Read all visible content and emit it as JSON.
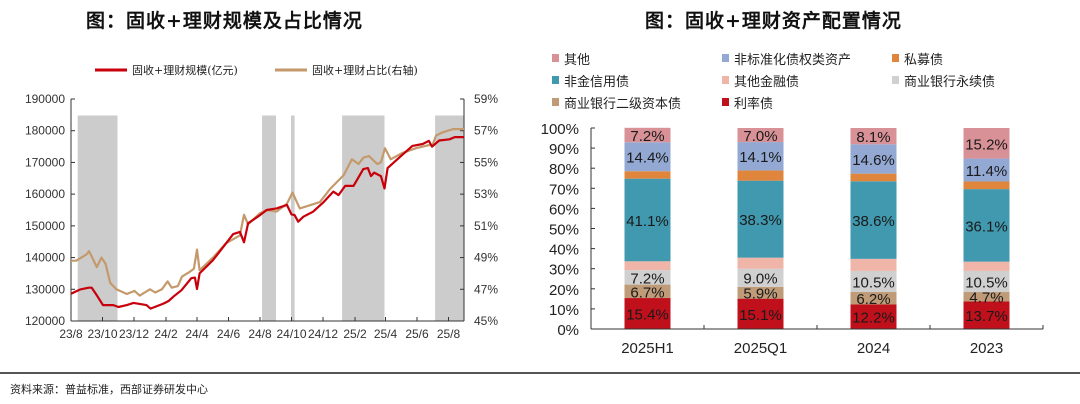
{
  "left_title": "图：固收+理财规模及占比情况",
  "right_title": "图：固收+理财资产配置情况",
  "source": "资料来源：普益标准，西部证券研发中心",
  "chart_data": [
    {
      "type": "line",
      "xlabels": [
        "23/8",
        "23/10",
        "23/12",
        "24/2",
        "24/4",
        "24/6",
        "24/8",
        "24/10",
        "24/12",
        "25/2",
        "25/4",
        "25/6",
        "25/8"
      ],
      "xtick_dates": [
        "2023-08-01",
        "2023-10-01",
        "2023-12-01",
        "2024-02-01",
        "2024-04-01",
        "2024-06-01",
        "2024-08-01",
        "2024-10-01",
        "2024-12-01",
        "2025-02-01",
        "2025-04-01",
        "2025-06-01",
        "2025-08-01"
      ],
      "xlim": [
        "2023-08-01",
        "2025-08-31"
      ],
      "y_left": {
        "lim": [
          120000,
          190000
        ],
        "ticks": [
          "120000",
          "130000",
          "140000",
          "150000",
          "160000",
          "170000",
          "180000",
          "190000"
        ]
      },
      "y_right": {
        "lim": [
          45,
          59
        ],
        "ticks": [
          "45%",
          "47%",
          "49%",
          "51%",
          "53%",
          "55%",
          "57%",
          "59%"
        ]
      },
      "grid": false,
      "legend_position": "top",
      "shaded_periods": [
        [
          "2023-08-14",
          "2023-10-30"
        ],
        [
          "2024-08-05",
          "2024-09-01"
        ],
        [
          "2024-09-30",
          "2024-10-07"
        ],
        [
          "2025-01-07",
          "2025-03-30"
        ],
        [
          "2025-07-06",
          "2025-08-31"
        ]
      ],
      "shade_color": "#cccccc",
      "series": [
        {
          "name": "固收+理财规模(亿元)",
          "axis": "left",
          "color": "#c8000b",
          "x": [
            "2023-08-01",
            "2023-08-18",
            "2023-09-04",
            "2023-09-10",
            "2023-09-20",
            "2023-10-02",
            "2023-10-22",
            "2023-11-01",
            "2023-11-17",
            "2023-11-30",
            "2023-12-25",
            "2024-01-02",
            "2024-01-27",
            "2024-02-06",
            "2024-02-16",
            "2024-03-02",
            "2024-03-21",
            "2024-03-28",
            "2024-04-01",
            "2024-04-06",
            "2024-05-02",
            "2024-05-27",
            "2024-06-10",
            "2024-06-23",
            "2024-07-01",
            "2024-07-09",
            "2024-08-01",
            "2024-08-14",
            "2024-09-02",
            "2024-09-22",
            "2024-10-01",
            "2024-10-07",
            "2024-10-14",
            "2024-10-24",
            "2024-11-12",
            "2024-12-01",
            "2024-12-21",
            "2024-12-31",
            "2025-01-13",
            "2025-01-29",
            "2025-02-17",
            "2025-02-26",
            "2025-03-04",
            "2025-03-10",
            "2025-03-23",
            "2025-03-30",
            "2025-04-05",
            "2025-04-28",
            "2025-05-23",
            "2025-06-12",
            "2025-06-24",
            "2025-06-30",
            "2025-07-14",
            "2025-08-03",
            "2025-08-13",
            "2025-08-31"
          ],
          "y": [
            128600,
            129900,
            130500,
            130500,
            128100,
            125000,
            125000,
            124400,
            125000,
            125700,
            125000,
            123900,
            125500,
            126300,
            127800,
            129700,
            133500,
            133700,
            130100,
            135000,
            139200,
            144400,
            147400,
            148100,
            144800,
            150800,
            153400,
            155000,
            155500,
            156600,
            153600,
            153400,
            151300,
            152900,
            154500,
            157300,
            160800,
            159700,
            162600,
            162600,
            167900,
            168200,
            165700,
            166800,
            165700,
            161800,
            168200,
            171600,
            175200,
            175800,
            176800,
            175000,
            176900,
            177300,
            178000,
            178000
          ]
        },
        {
          "name": "固收+理财占比(右轴)",
          "axis": "right",
          "color": "#c49a6c",
          "x": [
            "2023-08-01",
            "2023-08-11",
            "2023-08-31",
            "2023-09-05",
            "2023-09-20",
            "2023-09-29",
            "2023-10-07",
            "2023-10-16",
            "2023-10-28",
            "2023-11-17",
            "2023-12-02",
            "2023-12-12",
            "2024-01-01",
            "2024-01-11",
            "2024-01-24",
            "2024-02-04",
            "2024-02-12",
            "2024-02-24",
            "2024-03-03",
            "2024-03-18",
            "2024-03-26",
            "2024-04-01",
            "2024-04-06",
            "2024-05-02",
            "2024-05-27",
            "2024-06-23",
            "2024-07-01",
            "2024-07-09",
            "2024-08-01",
            "2024-08-14",
            "2024-09-02",
            "2024-09-22",
            "2024-10-03",
            "2024-10-17",
            "2024-11-06",
            "2024-11-25",
            "2024-12-14",
            "2025-01-10",
            "2025-01-26",
            "2025-02-08",
            "2025-02-17",
            "2025-02-28",
            "2025-03-16",
            "2025-03-23",
            "2025-03-31",
            "2025-04-11",
            "2025-05-04",
            "2025-05-30",
            "2025-06-25",
            "2025-07-01",
            "2025-07-08",
            "2025-07-21",
            "2025-08-10",
            "2025-08-31"
          ],
          "y": [
            48.8,
            48.8,
            49.2,
            49.4,
            48.4,
            49.0,
            48.6,
            47.4,
            47.0,
            46.7,
            46.9,
            46.6,
            47.0,
            46.8,
            47.0,
            47.5,
            47.1,
            47.2,
            47.8,
            48.1,
            48.3,
            49.5,
            48.2,
            49.0,
            49.9,
            50.4,
            51.7,
            51.1,
            51.8,
            52.0,
            51.9,
            52.4,
            53.1,
            52.1,
            52.3,
            52.5,
            53.3,
            54.2,
            55.2,
            54.9,
            55.3,
            55.4,
            54.9,
            55.0,
            55.9,
            55.2,
            55.6,
            55.9,
            56.1,
            56.1,
            56.7,
            56.9,
            57.1,
            57.1
          ]
        }
      ]
    },
    {
      "type": "bar",
      "stacked": true,
      "categories": [
        "2025H1",
        "2025Q1",
        "2024",
        "2023"
      ],
      "ylim": [
        0,
        100
      ],
      "yticks": [
        "0%",
        "10%",
        "20%",
        "30%",
        "40%",
        "50%",
        "60%",
        "70%",
        "80%",
        "90%",
        "100%"
      ],
      "legend_position": "top",
      "series": [
        {
          "name": "利率债",
          "color": "#c0101c",
          "values": [
            15.4,
            15.1,
            12.2,
            13.7
          ],
          "labels": [
            "15.4%",
            "15.1%",
            "12.2%",
            "13.7%"
          ]
        },
        {
          "name": "商业银行二级资本债",
          "color": "#bf9b78",
          "values": [
            6.7,
            5.9,
            6.2,
            4.7
          ],
          "labels": [
            "6.7%",
            "5.9%",
            "6.2%",
            "4.7%"
          ]
        },
        {
          "name": "商业银行永续债",
          "color": "#d0d0d0",
          "values": [
            7.2,
            9.0,
            10.5,
            10.5
          ],
          "labels": [
            "7.2%",
            "9.0%",
            "10.5%",
            "10.5%"
          ]
        },
        {
          "name": "其他金融债",
          "color": "#eeb5a8",
          "values": [
            4.4,
            5.5,
            6.0,
            4.6
          ],
          "labels": [
            "",
            "",
            "",
            ""
          ]
        },
        {
          "name": "非金信用债",
          "color": "#4199b0",
          "values": [
            41.1,
            38.3,
            38.6,
            36.1
          ],
          "labels": [
            "41.1%",
            "38.3%",
            "38.6%",
            "36.1%"
          ]
        },
        {
          "name": "私募债",
          "color": "#e0853c",
          "values": [
            3.7,
            5.1,
            3.8,
            3.8
          ],
          "labels": [
            "",
            "",
            "",
            ""
          ]
        },
        {
          "name": "非标准化债权类资产",
          "color": "#93a9d3",
          "values": [
            14.4,
            14.1,
            14.6,
            11.4
          ],
          "labels": [
            "14.4%",
            "14.1%",
            "14.6%",
            "11.4%"
          ]
        },
        {
          "name": "其他",
          "color": "#d89196",
          "values": [
            7.2,
            7.0,
            8.1,
            15.2
          ],
          "labels": [
            "7.2%",
            "7.0%",
            "8.1%",
            "15.2%"
          ]
        }
      ],
      "legend_order": [
        7,
        6,
        5,
        4,
        3,
        2,
        1,
        0
      ]
    }
  ]
}
